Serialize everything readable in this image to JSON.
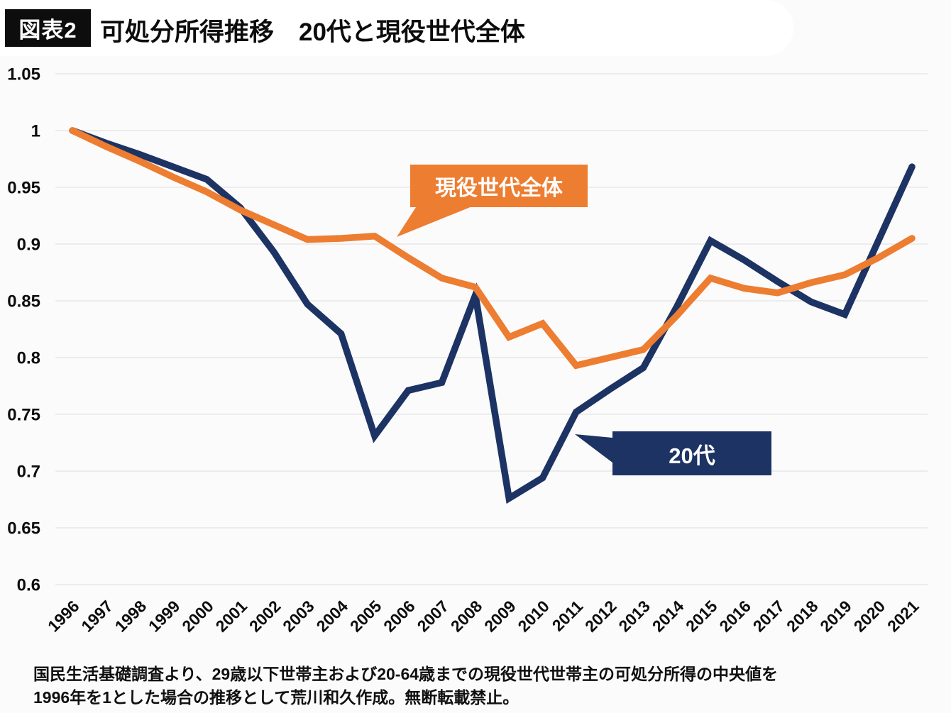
{
  "title": {
    "badge": "図表2",
    "text": "可処分所得推移　20代と現役世代全体"
  },
  "chart_data": {
    "type": "line",
    "title": "可処分所得推移 20代と現役世代全体",
    "x": [
      1996,
      1997,
      1998,
      1999,
      2000,
      2001,
      2002,
      2003,
      2004,
      2005,
      2006,
      2007,
      2008,
      2009,
      2010,
      2011,
      2012,
      2013,
      2014,
      2015,
      2016,
      2017,
      2018,
      2019,
      2020,
      2021
    ],
    "series": [
      {
        "name": "20代",
        "color": "#1c3363",
        "values": [
          1.0,
          0.989,
          0.979,
          0.968,
          0.957,
          0.932,
          0.893,
          0.847,
          0.821,
          0.731,
          0.771,
          0.778,
          0.855,
          0.676,
          0.694,
          0.752,
          0.772,
          0.791,
          0.845,
          0.903,
          0.886,
          0.867,
          0.849,
          0.838,
          0.903,
          0.968
        ]
      },
      {
        "name": "現役世代全体",
        "color": "#ed7d31",
        "values": [
          1.0,
          0.986,
          0.973,
          0.959,
          0.946,
          0.93,
          0.917,
          0.904,
          0.905,
          0.907,
          0.888,
          0.87,
          0.862,
          0.818,
          0.83,
          0.793,
          0.8,
          0.807,
          0.837,
          0.87,
          0.861,
          0.857,
          0.866,
          0.873,
          0.888,
          0.905
        ]
      }
    ],
    "ylim": [
      0.6,
      1.05
    ],
    "y_ticks": [
      1.05,
      1,
      0.95,
      0.9,
      0.85,
      0.8,
      0.75,
      0.7,
      0.65,
      0.6
    ],
    "grid": true,
    "legend": "none",
    "baseline_note": "1996 = 1",
    "annotations": [
      {
        "label": "現役世代全体",
        "color": "#ed7d31",
        "points_to_year": 2005
      },
      {
        "label": "20代",
        "color": "#1c3363",
        "points_to_year": 2011
      }
    ]
  },
  "footer": {
    "line1": "国民生活基礎調査より、29歳以下世帯主および20-64歳までの現役世代世帯主の可処分所得の中央値を",
    "line2": "1996年を1とした場合の推移として荒川和久作成。無断転載禁止。"
  }
}
